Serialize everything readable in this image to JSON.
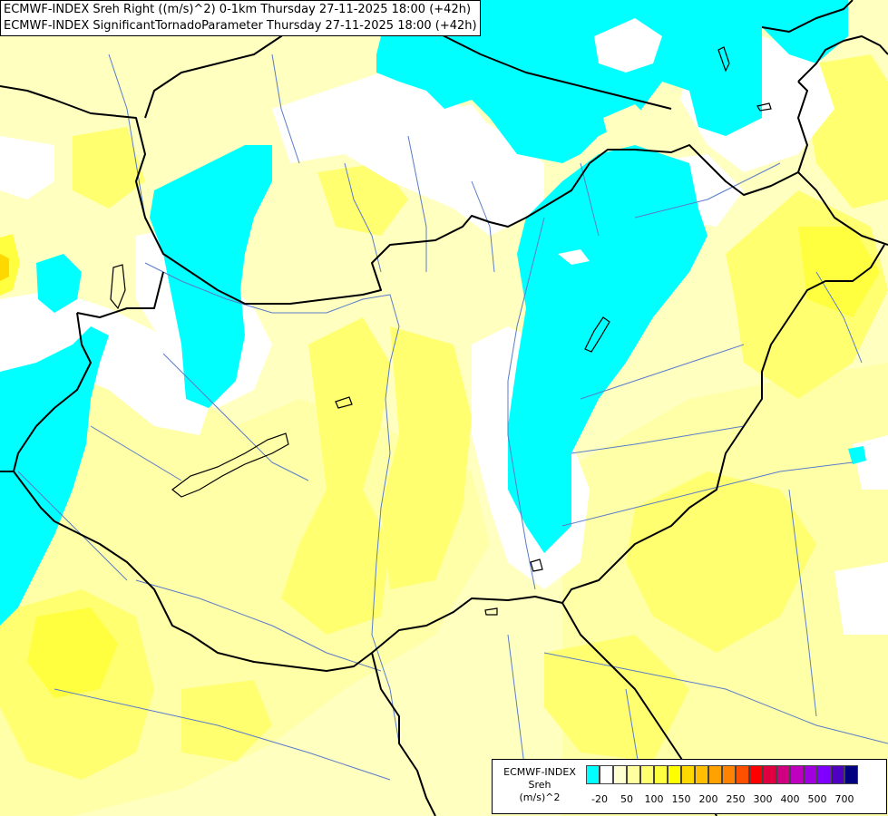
{
  "header": {
    "line1": "ECMWF-INDEX Sreh Right ((m/s)^2) 0-1km Thursday 27-11-2025 18:00 (+42h)",
    "line2": "ECMWF-INDEX SignificantTornadoParameter Thursday 27-11-2025 18:00 (+42h)"
  },
  "legend": {
    "title_line1": "ECMWF-INDEX",
    "title_line2": "Sreh",
    "title_line3": "(m/s)^2",
    "colors": [
      "#00ffff",
      "#ffffff",
      "#ffffd0",
      "#ffffa0",
      "#ffff70",
      "#ffff40",
      "#ffff00",
      "#ffd800",
      "#ffbf00",
      "#ffa200",
      "#ff8200",
      "#ff5000",
      "#ff0000",
      "#e00040",
      "#d00080",
      "#c000c0",
      "#a000e0",
      "#8000ff",
      "#5000c0",
      "#000080"
    ],
    "ticks": [
      "-20",
      "50",
      "100",
      "150",
      "200",
      "250",
      "300",
      "400",
      "500",
      "700"
    ]
  },
  "map": {
    "colors": {
      "background": "#ffffc0",
      "cyan": "#00ffff",
      "white": "#ffffff",
      "pale_yellow": "#ffffa8",
      "yellow": "#ffff70",
      "strong_yellow": "#ffff40",
      "orange": "#ffd800",
      "border": "#000000",
      "river": "#5a7cc8"
    }
  }
}
